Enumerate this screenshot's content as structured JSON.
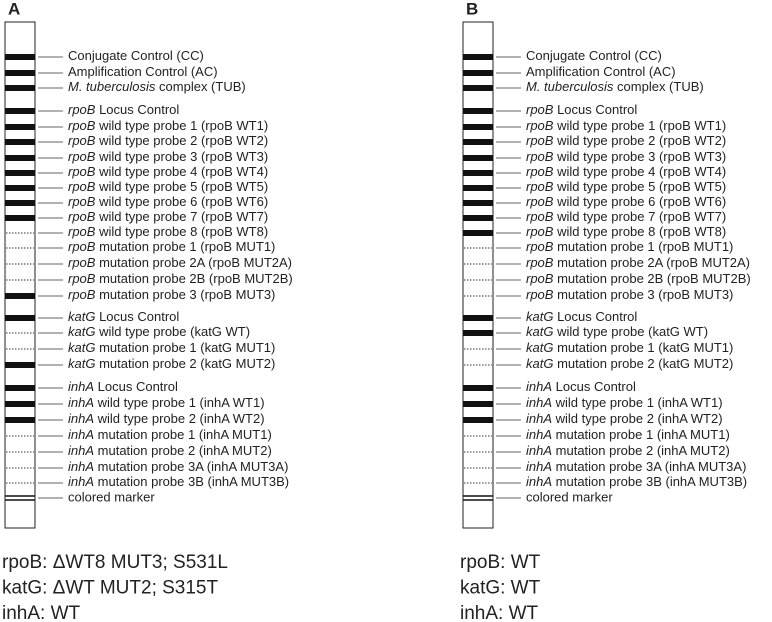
{
  "panels": [
    {
      "label": "A",
      "probes": [
        {
          "text": "Conjugate Control (CC)",
          "present": true
        },
        {
          "text": "Amplification Control (AC)",
          "present": true
        },
        {
          "italic": "M. tuberculosis",
          "text": " complex (TUB)",
          "present": true
        },
        {
          "italic": "rpoB",
          "text": " Locus Control",
          "present": true
        },
        {
          "italic": "rpoB",
          "text": " wild type probe 1 (rpoB WT1)",
          "present": true
        },
        {
          "italic": "rpoB",
          "text": " wild type probe 2 (rpoB WT2)",
          "present": true
        },
        {
          "italic": "rpoB",
          "text": " wild type probe 3 (rpoB WT3)",
          "present": true
        },
        {
          "italic": "rpoB",
          "text": " wild type probe 4 (rpoB WT4)",
          "present": true
        },
        {
          "italic": "rpoB",
          "text": " wild type probe 5 (rpoB WT5)",
          "present": true
        },
        {
          "italic": "rpoB",
          "text": " wild type probe 6 (rpoB WT6)",
          "present": true
        },
        {
          "italic": "rpoB",
          "text": " wild type probe 7 (rpoB WT7)",
          "present": true
        },
        {
          "italic": "rpoB",
          "text": " wild type probe 8 (rpoB WT8)",
          "present": false
        },
        {
          "italic": "rpoB",
          "text": " mutation probe 1 (rpoB MUT1)",
          "present": false
        },
        {
          "italic": "rpoB",
          "text": " mutation probe 2A (rpoB MUT2A)",
          "present": false
        },
        {
          "italic": "rpoB",
          "text": " mutation probe 2B (rpoB MUT2B)",
          "present": false
        },
        {
          "italic": "rpoB",
          "text": " mutation probe 3 (rpoB MUT3)",
          "present": true
        },
        {
          "italic": "katG",
          "text": " Locus Control",
          "present": true
        },
        {
          "italic": "katG",
          "text": " wild type probe (katG WT)",
          "present": false
        },
        {
          "italic": "katG",
          "text": " mutation probe 1 (katG MUT1)",
          "present": false
        },
        {
          "italic": "katG",
          "text": " mutation probe 2 (katG MUT2)",
          "present": true
        },
        {
          "italic": "inhA",
          "text": " Locus Control",
          "present": true
        },
        {
          "italic": "inhA",
          "text": " wild type probe 1 (inhA WT1)",
          "present": true
        },
        {
          "italic": "inhA",
          "text": " wild type probe 2 (inhA WT2)",
          "present": true
        },
        {
          "italic": "inhA",
          "text": " mutation probe 1 (inhA MUT1)",
          "present": false
        },
        {
          "italic": "inhA",
          "text": " mutation probe 2 (inhA MUT2)",
          "present": false
        },
        {
          "italic": "inhA",
          "text": " mutation probe 3A (inhA MUT3A)",
          "present": false
        },
        {
          "italic": "inhA",
          "text": " mutation probe 3B (inhA MUT3B)",
          "present": false
        }
      ],
      "marker": "colored marker",
      "results": [
        "rpoB: ΔWT8 MUT3; S531L",
        "katG: ΔWT MUT2; S315T",
        "inhA: WT"
      ]
    },
    {
      "label": "B",
      "probes": [
        {
          "text": "Conjugate Control (CC)",
          "present": true
        },
        {
          "text": "Amplification Control (AC)",
          "present": true
        },
        {
          "italic": "M. tuberculosis",
          "text": " complex (TUB)",
          "present": true
        },
        {
          "italic": "rpoB",
          "text": " Locus Control",
          "present": true
        },
        {
          "italic": "rpoB",
          "text": " wild type probe 1 (rpoB WT1)",
          "present": true
        },
        {
          "italic": "rpoB",
          "text": " wild type probe 2 (rpoB WT2)",
          "present": true
        },
        {
          "italic": "rpoB",
          "text": " wild type probe 3 (rpoB WT3)",
          "present": true
        },
        {
          "italic": "rpoB",
          "text": " wild type probe 4 (rpoB WT4)",
          "present": true
        },
        {
          "italic": "rpoB",
          "text": " wild type probe 5 (rpoB WT5)",
          "present": true
        },
        {
          "italic": "rpoB",
          "text": " wild type probe 6 (rpoB WT6)",
          "present": true
        },
        {
          "italic": "rpoB",
          "text": " wild type probe 7 (rpoB WT7)",
          "present": true
        },
        {
          "italic": "rpoB",
          "text": " wild type probe 8 (rpoB WT8)",
          "present": true
        },
        {
          "italic": "rpoB",
          "text": " mutation probe 1 (rpoB MUT1)",
          "present": false
        },
        {
          "italic": "rpoB",
          "text": " mutation probe 2A (rpoB MUT2A)",
          "present": false
        },
        {
          "italic": "rpoB",
          "text": " mutation probe 2B (rpoB MUT2B)",
          "present": false
        },
        {
          "italic": "rpoB",
          "text": " mutation probe 3 (rpoB MUT3)",
          "present": false
        },
        {
          "italic": "katG",
          "text": " Locus Control",
          "present": true
        },
        {
          "italic": "katG",
          "text": " wild type probe (katG WT)",
          "present": true
        },
        {
          "italic": "katG",
          "text": " mutation probe 1 (katG MUT1)",
          "present": false
        },
        {
          "italic": "katG",
          "text": " mutation probe 2 (katG MUT2)",
          "present": false
        },
        {
          "italic": "inhA",
          "text": " Locus Control",
          "present": true
        },
        {
          "italic": "inhA",
          "text": " wild type probe 1 (inhA WT1)",
          "present": true
        },
        {
          "italic": "inhA",
          "text": " wild type probe 2 (inhA WT2)",
          "present": true
        },
        {
          "italic": "inhA",
          "text": " mutation probe 1 (inhA MUT1)",
          "present": false
        },
        {
          "italic": "inhA",
          "text": " mutation probe 2 (inhA MUT2)",
          "present": false
        },
        {
          "italic": "inhA",
          "text": " mutation probe 3A (inhA MUT3A)",
          "present": false
        },
        {
          "italic": "inhA",
          "text": " mutation probe 3B (inhA MUT3B)",
          "present": false
        }
      ],
      "marker": "colored marker",
      "results": [
        "rpoB: WT",
        "katG: WT",
        "inhA: WT"
      ]
    }
  ]
}
